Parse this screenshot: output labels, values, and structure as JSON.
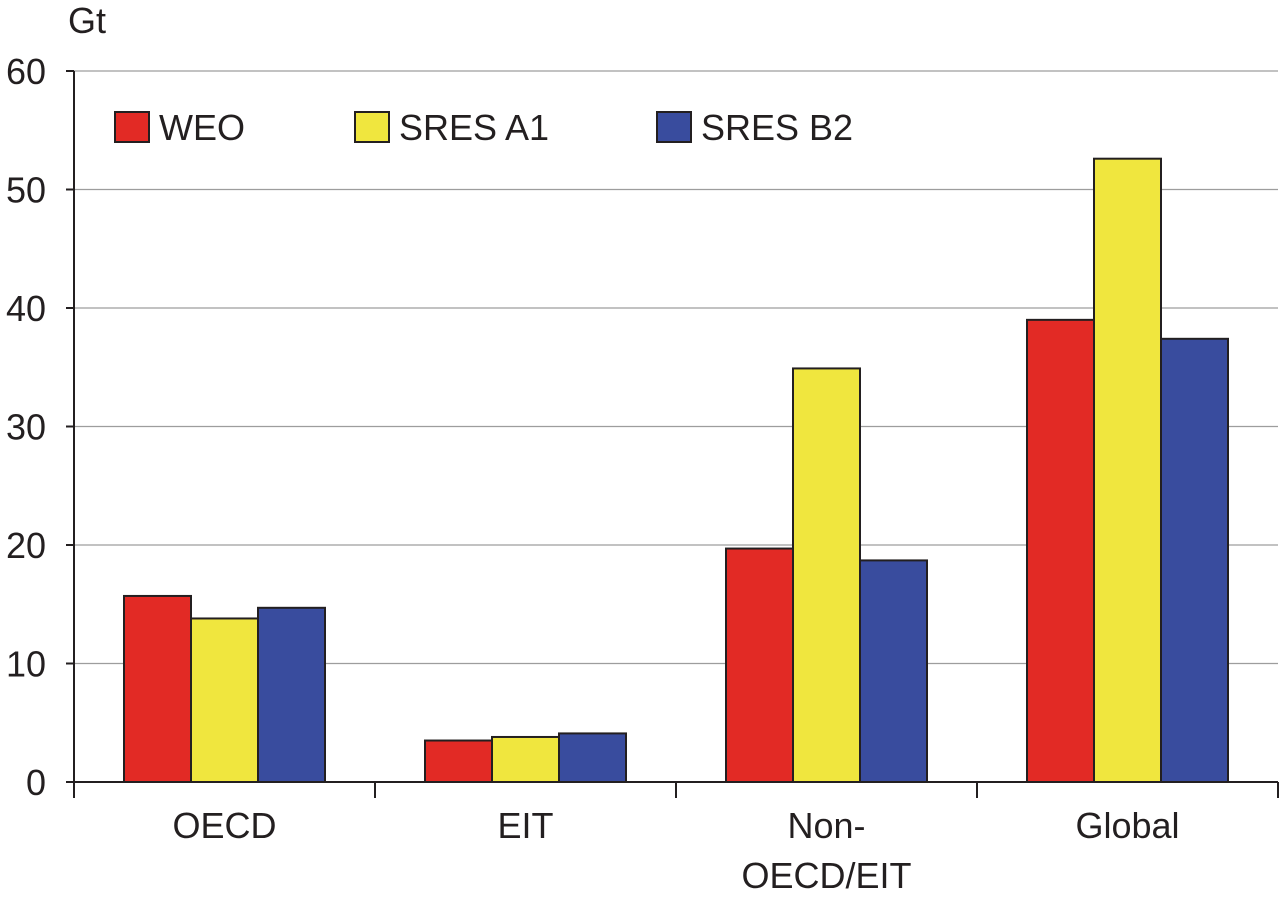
{
  "chart_data": {
    "type": "bar",
    "title": "",
    "xlabel": "",
    "ylabel": "Gt",
    "ylim": [
      0,
      60
    ],
    "yticks": [
      0,
      10,
      20,
      30,
      40,
      50,
      60
    ],
    "grid": true,
    "legend_position": "top-left",
    "categories": [
      [
        "OECD"
      ],
      [
        "EIT"
      ],
      [
        "Non-",
        "OECD/EIT"
      ],
      [
        "Global"
      ]
    ],
    "series": [
      {
        "name": "WEO",
        "color": "#e22a25",
        "values": [
          15.7,
          3.5,
          19.7,
          39.0
        ]
      },
      {
        "name": "SRES A1",
        "color": "#f0e63e",
        "values": [
          13.8,
          3.8,
          34.9,
          52.6
        ]
      },
      {
        "name": "SRES B2",
        "color": "#394c9e",
        "values": [
          14.7,
          4.1,
          18.7,
          37.4
        ]
      }
    ]
  }
}
